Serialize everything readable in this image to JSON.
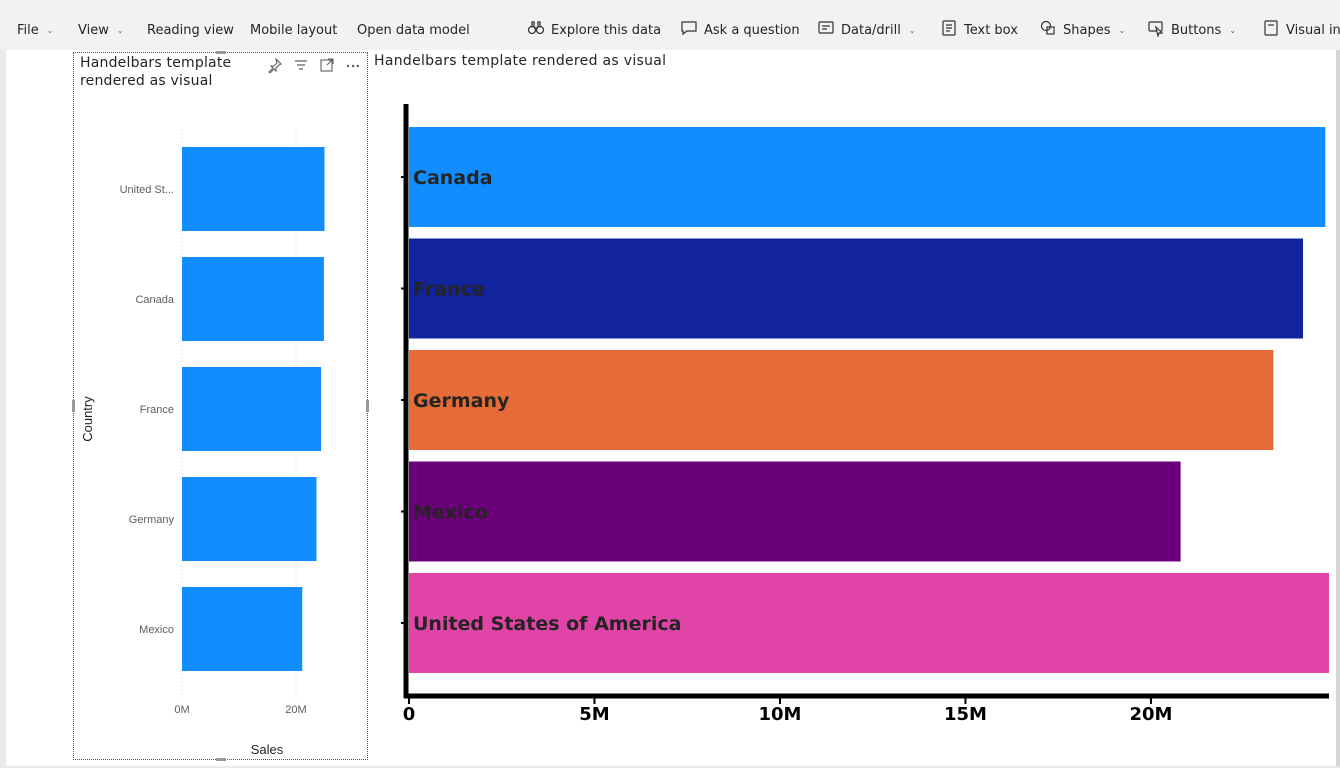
{
  "toolbar": {
    "items": [
      {
        "label": "File",
        "has_dropdown": true,
        "icon": ""
      },
      {
        "label": "View",
        "has_dropdown": true,
        "icon": ""
      },
      {
        "label": "Reading view",
        "has_dropdown": false,
        "icon": ""
      },
      {
        "label": "Mobile layout",
        "has_dropdown": false,
        "icon": ""
      },
      {
        "label": "Open data model",
        "has_dropdown": false,
        "icon": ""
      },
      {
        "label": "Explore this data",
        "has_dropdown": false,
        "icon": "binoculars-icon"
      },
      {
        "label": "Ask a question",
        "has_dropdown": false,
        "icon": "chat-bubble-icon"
      },
      {
        "label": "Data/drill",
        "has_dropdown": true,
        "icon": "drill-icon"
      },
      {
        "label": "Text box",
        "has_dropdown": false,
        "icon": "text-box-icon"
      },
      {
        "label": "Shapes",
        "has_dropdown": true,
        "icon": "shapes-icon"
      },
      {
        "label": "Buttons",
        "has_dropdown": true,
        "icon": "cursor-icon"
      },
      {
        "label": "Visual int",
        "has_dropdown": false,
        "icon": "visual-interactions-icon"
      }
    ]
  },
  "small_visual": {
    "title": "Handelbars template rendered as visual",
    "header_icons": [
      "pin-icon",
      "filter-icon",
      "focus-mode-icon",
      "more-options-icon"
    ]
  },
  "big_visual": {
    "title": "Handelbars template rendered as visual"
  },
  "chart_data": [
    {
      "type": "bar",
      "orientation": "horizontal",
      "categories": [
        "United St...",
        "Canada",
        "France",
        "Germany",
        "Mexico"
      ],
      "values": [
        25,
        24.9,
        24.4,
        23.6,
        21.1
      ],
      "xlabel": "Sales",
      "ylabel": "Country",
      "x_ticks": [
        "0M",
        "20M"
      ],
      "xlim": [
        0,
        40
      ],
      "colors": [
        "#118dff"
      ],
      "grid": true
    },
    {
      "type": "bar",
      "orientation": "horizontal",
      "categories": [
        "Canada",
        "France",
        "Germany",
        "Mexico",
        "United States of America"
      ],
      "values": [
        24.7,
        24.1,
        23.3,
        20.8,
        24.8
      ],
      "xlabel": "",
      "ylabel": "",
      "x_ticks": [
        "0",
        "5M",
        "10M",
        "15M",
        "20M"
      ],
      "xlim": [
        0,
        24.8
      ],
      "colors": [
        "#118dff",
        "#12239e",
        "#e66c37",
        "#6b007b",
        "#e044a7"
      ],
      "grid": false
    }
  ]
}
